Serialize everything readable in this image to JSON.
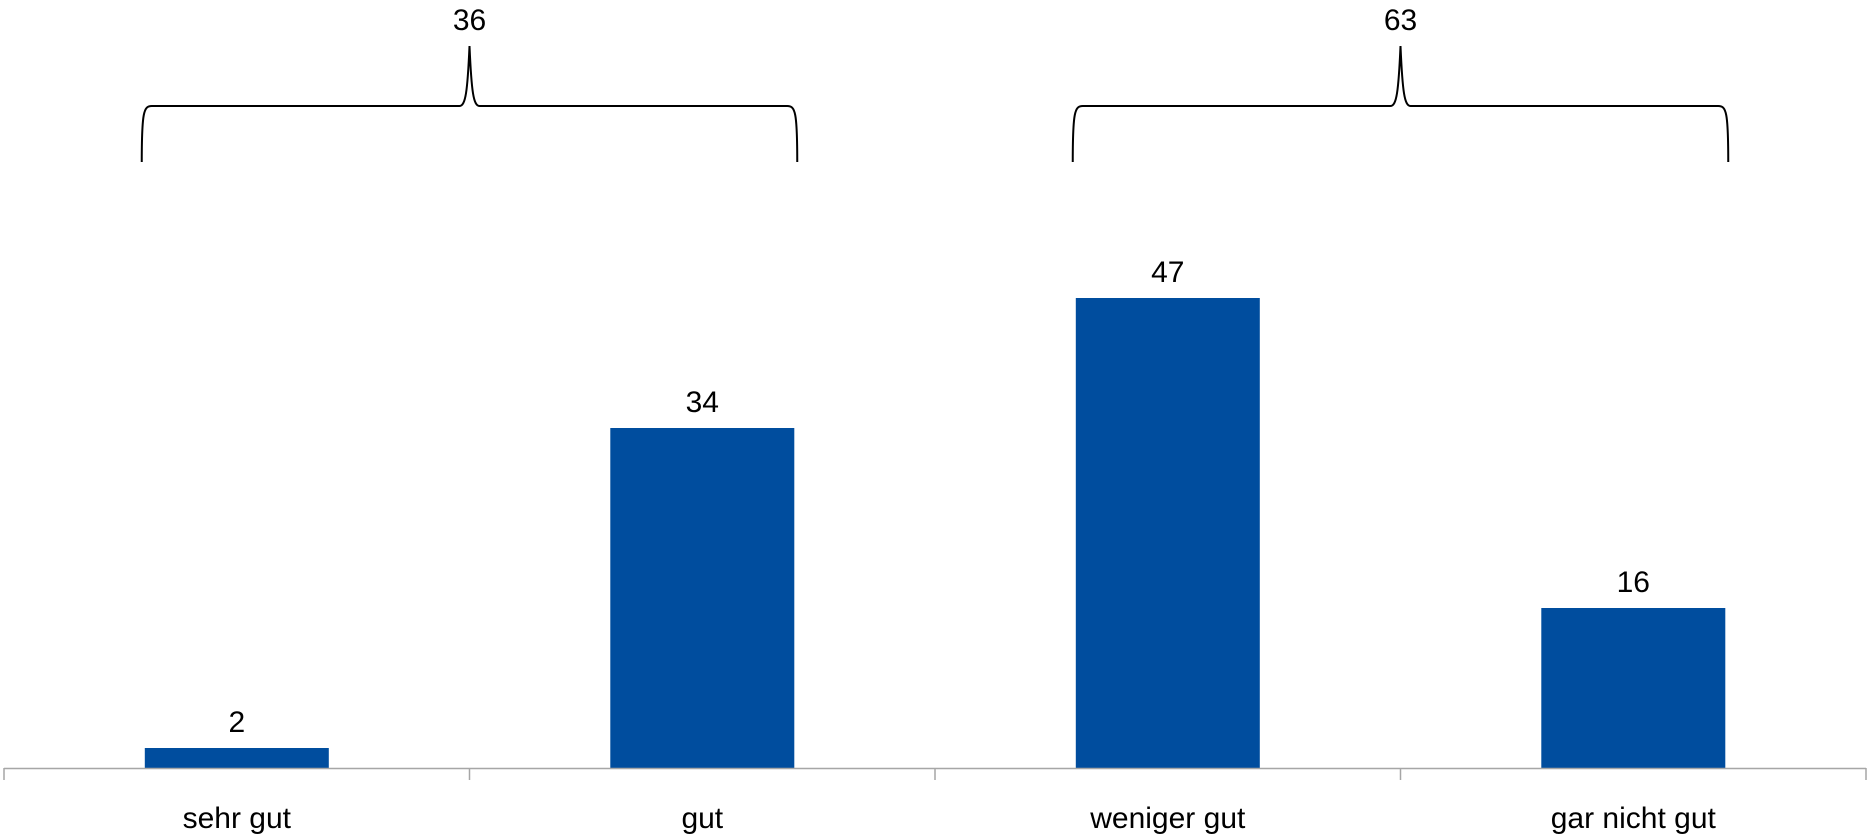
{
  "chart_data": {
    "type": "bar",
    "categories": [
      "sehr gut",
      "gut",
      "weniger gut",
      "gar nicht gut"
    ],
    "values": [
      2,
      34,
      47,
      16
    ],
    "data_labels": [
      "2",
      "34",
      "47",
      "16"
    ],
    "groups": [
      {
        "label": "36",
        "from_category": 0,
        "to_category": 1
      },
      {
        "label": "63",
        "from_category": 2,
        "to_category": 3
      }
    ],
    "bar_color": "#004D9E",
    "axis_color": "#A6A6A6",
    "legend": "none",
    "grid": false
  }
}
